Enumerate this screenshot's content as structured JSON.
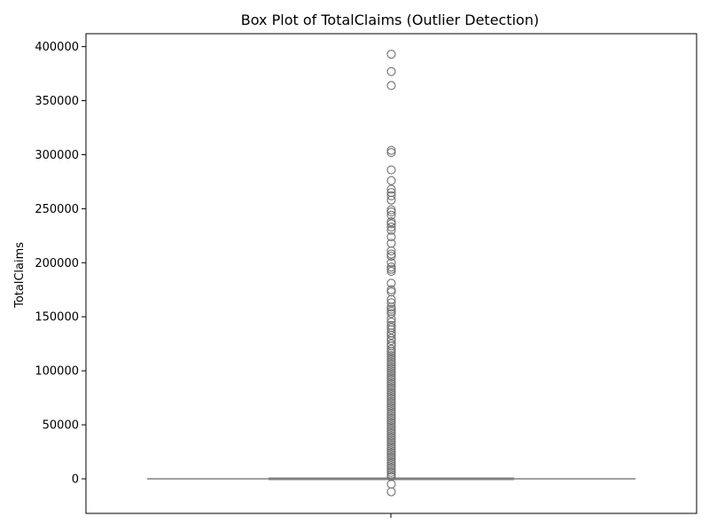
{
  "chart_data": {
    "type": "box",
    "title": "Box Plot of TotalClaims (Outlier Detection)",
    "xlabel": "",
    "ylabel": "TotalClaims",
    "ylim": [
      -32000,
      412000
    ],
    "yticks": [
      0,
      50000,
      100000,
      150000,
      200000,
      250000,
      300000,
      350000,
      400000
    ],
    "grid": false,
    "box": {
      "min": 0,
      "q1": 0,
      "median": 0,
      "q3": 0,
      "max": 0,
      "cap_width": 0.4
    },
    "outliers": [
      393000,
      377000,
      364000,
      304000,
      302000,
      286000,
      276000,
      268000,
      265000,
      262000,
      258000,
      249000,
      247000,
      244000,
      238000,
      236000,
      233000,
      230000,
      224000,
      218000,
      211000,
      208000,
      206000,
      200000,
      196000,
      194000,
      192000,
      181000,
      175000,
      173000,
      166000,
      163000,
      159000,
      157000,
      155000,
      153000,
      148000,
      145000,
      142000,
      140000,
      138000,
      135000,
      133000,
      130000,
      128000,
      125000,
      123000,
      120000,
      118000,
      116000,
      114000,
      112000,
      110000,
      108000,
      106000,
      104000,
      102000,
      100000,
      98000,
      96000,
      94000,
      92000,
      90000,
      88000,
      86000,
      84000,
      82000,
      80000,
      78000,
      76000,
      74000,
      72000,
      70000,
      68000,
      66000,
      64000,
      62000,
      60000,
      58000,
      56000,
      54000,
      52000,
      50000,
      48000,
      46000,
      44000,
      42000,
      40000,
      38000,
      36000,
      34000,
      32000,
      30000,
      28000,
      26000,
      24000,
      22000,
      20000,
      18000,
      16000,
      14000,
      12000,
      10000,
      8000,
      6000,
      4000,
      2000,
      -5000,
      -12000
    ],
    "colors": {
      "box_line": "#808080",
      "marker_edge": "#707070"
    }
  }
}
